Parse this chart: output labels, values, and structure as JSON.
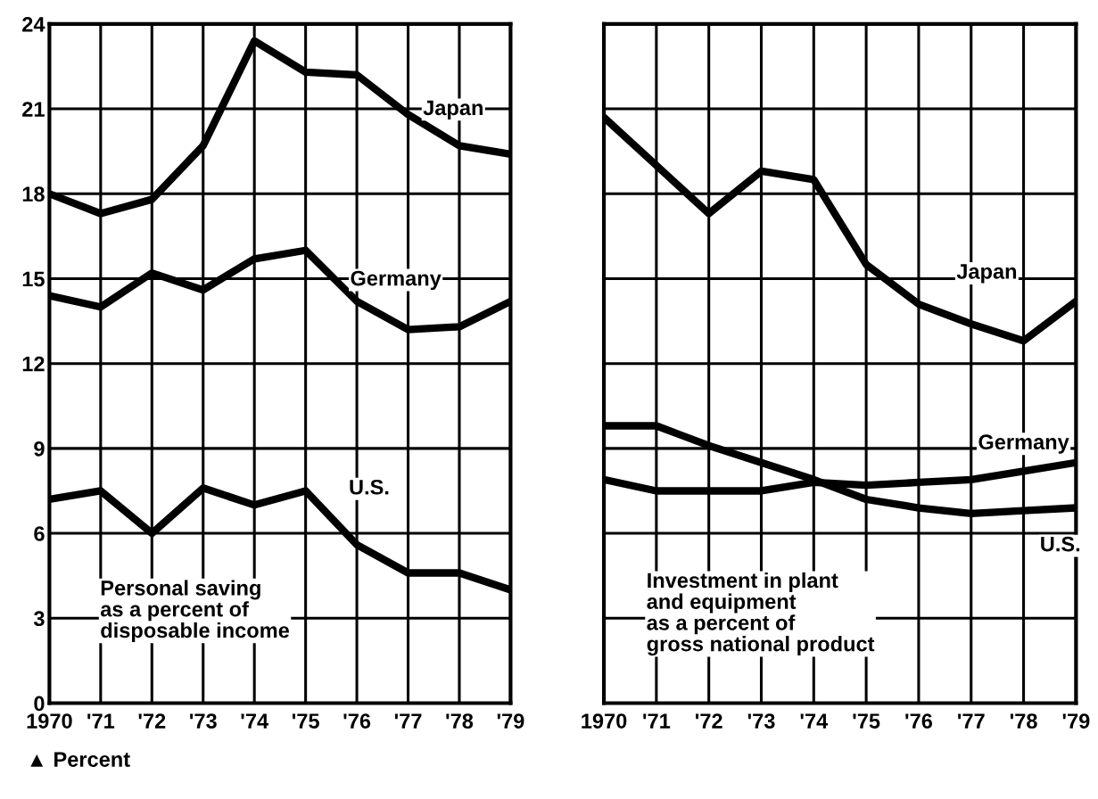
{
  "chart_data": [
    {
      "type": "line",
      "x": [
        1970,
        1971,
        1972,
        1973,
        1974,
        1975,
        1976,
        1977,
        1978,
        1979
      ],
      "series": [
        {
          "name": "Japan",
          "color": "#000000",
          "values": [
            18.0,
            17.3,
            17.8,
            19.7,
            23.4,
            22.3,
            22.2,
            20.8,
            19.7,
            19.4
          ]
        },
        {
          "name": "Germany",
          "color": "#000000",
          "values": [
            14.4,
            14.0,
            15.2,
            14.6,
            15.7,
            16.0,
            14.2,
            13.2,
            13.3,
            14.2
          ]
        },
        {
          "name": "U.S.",
          "color": "#000000",
          "values": [
            7.2,
            7.5,
            6.0,
            7.6,
            7.0,
            7.5,
            5.6,
            4.6,
            4.6,
            4.0
          ]
        }
      ],
      "xlim": [
        1970,
        1979
      ],
      "xticks": [
        {
          "value": 1970,
          "label": "1970"
        },
        {
          "value": 1971,
          "label": "'71"
        },
        {
          "value": 1972,
          "label": "'72"
        },
        {
          "value": 1973,
          "label": "'73"
        },
        {
          "value": 1974,
          "label": "'74"
        },
        {
          "value": 1975,
          "label": "'75"
        },
        {
          "value": 1976,
          "label": "'76"
        },
        {
          "value": 1977,
          "label": "'77"
        },
        {
          "value": 1978,
          "label": "'78"
        },
        {
          "value": 1979,
          "label": "'79"
        }
      ],
      "ylim": [
        0,
        24
      ],
      "yticks": [
        0,
        3,
        6,
        9,
        12,
        15,
        18,
        21,
        24
      ],
      "grid": true,
      "marker": "none",
      "line_style": "solid",
      "annotations": [
        "Personal saving\nas a percent of\ndisposable income",
        "▲ Percent"
      ]
    },
    {
      "type": "line",
      "x": [
        1970,
        1971,
        1972,
        1973,
        1974,
        1975,
        1976,
        1977,
        1978,
        1979
      ],
      "series": [
        {
          "name": "Japan",
          "color": "#000000",
          "values": [
            20.7,
            19.0,
            17.3,
            18.8,
            18.5,
            15.5,
            14.1,
            13.4,
            12.8,
            14.2
          ]
        },
        {
          "name": "Germany",
          "color": "#000000",
          "values": [
            7.9,
            7.5,
            7.5,
            7.5,
            7.8,
            7.7,
            7.8,
            7.9,
            8.2,
            8.5
          ]
        },
        {
          "name": "U.S.",
          "color": "#000000",
          "values": [
            9.8,
            9.8,
            9.1,
            8.5,
            7.9,
            7.2,
            6.9,
            6.7,
            6.8,
            6.9
          ]
        }
      ],
      "xlim": [
        1970,
        1979
      ],
      "xticks": [
        {
          "value": 1970,
          "label": "1970"
        },
        {
          "value": 1971,
          "label": "'71"
        },
        {
          "value": 1972,
          "label": "'72"
        },
        {
          "value": 1973,
          "label": "'73"
        },
        {
          "value": 1974,
          "label": "'74"
        },
        {
          "value": 1975,
          "label": "'75"
        },
        {
          "value": 1976,
          "label": "'76"
        },
        {
          "value": 1977,
          "label": "'77"
        },
        {
          "value": 1978,
          "label": "'78"
        },
        {
          "value": 1979,
          "label": "'79"
        }
      ],
      "ylim": [
        0,
        24
      ],
      "yticks": [
        0,
        3,
        6,
        9,
        12,
        15,
        18,
        21,
        24
      ],
      "tick_labels": "x",
      "grid": true,
      "marker": "none",
      "line_style": "solid",
      "annotations": [
        "Investment in plant\nand equipment\nas a percent of\ngross national product"
      ]
    }
  ]
}
